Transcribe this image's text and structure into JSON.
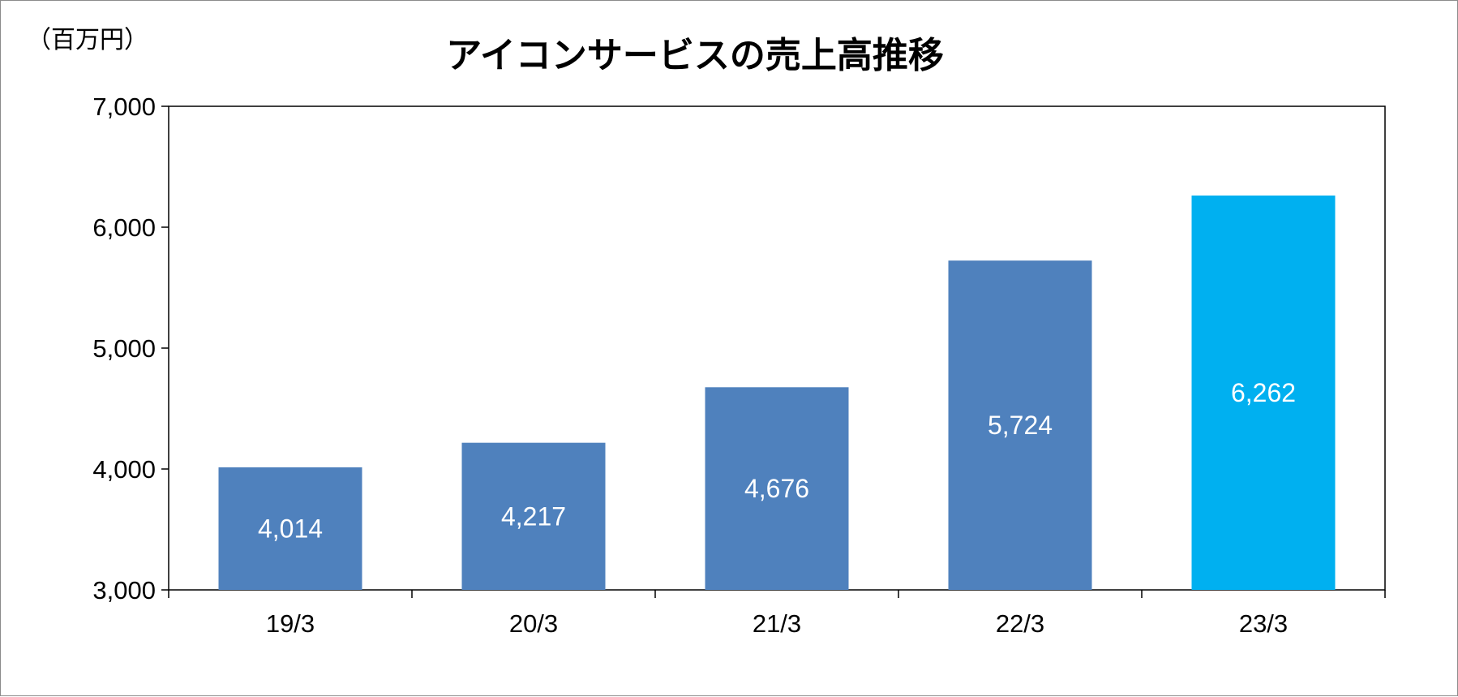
{
  "chart_data": {
    "type": "bar",
    "title": "アイコンサービスの売上高推移",
    "unit_label": "（百万円）",
    "xlabel": "",
    "ylabel": "",
    "categories": [
      "19/3",
      "20/3",
      "21/3",
      "22/3",
      "23/3"
    ],
    "values": [
      4014,
      4217,
      4676,
      5724,
      6262
    ],
    "value_labels": [
      "4,014",
      "4,217",
      "4,676",
      "5,724",
      "6,262"
    ],
    "ylim": [
      3000,
      7000
    ],
    "y_ticks": [
      3000,
      4000,
      5000,
      6000,
      7000
    ],
    "y_tick_labels": [
      "3,000",
      "4,000",
      "5,000",
      "6,000",
      "7,000"
    ],
    "bar_colors": [
      "#4f81bd",
      "#4f81bd",
      "#4f81bd",
      "#4f81bd",
      "#00b0f0"
    ],
    "grid": false,
    "legend": "none"
  }
}
